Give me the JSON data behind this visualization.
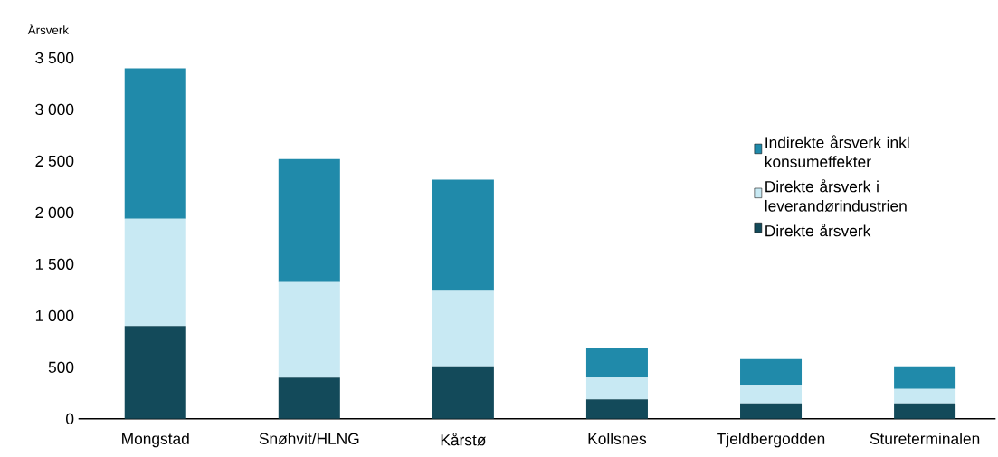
{
  "chart_data": {
    "type": "bar",
    "stacked": true,
    "ylabel": "Årsverk",
    "categories": [
      "Mongstad",
      "Snøhvit/HLNG",
      "Kårstø",
      "Kollsnes",
      "Tjeldbergodden",
      "Stureterminalen"
    ],
    "series": [
      {
        "name": "Direkte årsverk",
        "color": "#134a5a",
        "values": [
          900,
          400,
          510,
          190,
          150,
          150
        ]
      },
      {
        "name": "Direkte årsverk i leverandørindustrien",
        "color": "#c8e9f3",
        "values": [
          1040,
          925,
          730,
          210,
          180,
          140
        ]
      },
      {
        "name": "Indirekte årsverk inkl konsumeffekter",
        "color": "#208aaa",
        "values": [
          1460,
          1195,
          1080,
          290,
          250,
          220
        ]
      }
    ],
    "ylim": [
      0,
      3500
    ],
    "yticks": [
      0,
      500,
      {
        "value": 1000,
        "label": "1 000"
      },
      {
        "value": 1500,
        "label": "1 500"
      },
      {
        "value": 2000,
        "label": "2 000"
      },
      {
        "value": 2500,
        "label": "2 500"
      },
      {
        "value": 3000,
        "label": "3 000"
      },
      {
        "value": 3500,
        "label": "3 500"
      }
    ],
    "legend": "right"
  }
}
